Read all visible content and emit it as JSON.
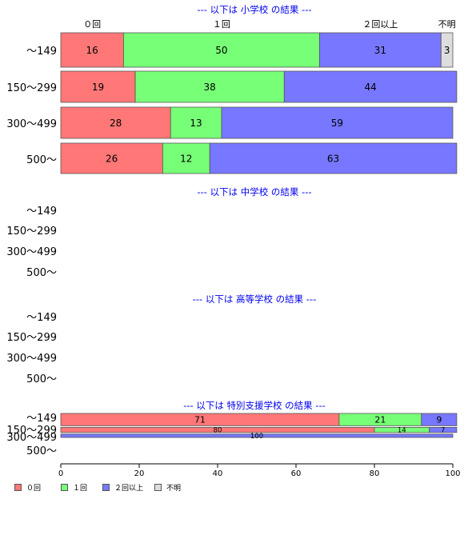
{
  "chart_data": {
    "type": "bar",
    "orientation": "horizontal",
    "stacked": true,
    "scale": "percent",
    "xlim": [
      0,
      100
    ],
    "xticks": [
      0,
      20,
      40,
      60,
      80,
      100
    ],
    "grid": false,
    "legend_position": "bottom-left",
    "categories": [
      "〜149",
      "150〜299",
      "300〜499",
      "500〜"
    ],
    "top_segment_labels": [
      "０回",
      "１回",
      "２回以上",
      "不明"
    ],
    "series": [
      {
        "name": "０回",
        "color": "#ff7777"
      },
      {
        "name": "１回",
        "color": "#77ff77"
      },
      {
        "name": "２回以上",
        "color": "#7777ff"
      },
      {
        "name": "不明",
        "color": "#dddddd"
      }
    ],
    "panels": [
      {
        "title": "--- 以下は 小学校 の結果 ---",
        "values": [
          [
            16,
            50,
            31,
            3
          ],
          [
            19,
            38,
            44,
            0
          ],
          [
            28,
            13,
            59,
            0
          ],
          [
            26,
            12,
            63,
            0
          ]
        ]
      },
      {
        "title": "--- 以下は 中学校 の結果 ---",
        "values": [
          null,
          null,
          null,
          null
        ]
      },
      {
        "title": "--- 以下は 高等学校 の結果 ---",
        "values": [
          null,
          null,
          null,
          null
        ]
      },
      {
        "title": "--- 以下は 特別支援学校 の結果 ---",
        "values": [
          [
            71,
            21,
            9,
            0
          ],
          [
            80,
            14,
            7,
            0
          ],
          [
            0,
            0,
            100,
            0
          ],
          null
        ],
        "bar_height_share": [
          0.58,
          0.28,
          0.14,
          0
        ]
      }
    ]
  }
}
